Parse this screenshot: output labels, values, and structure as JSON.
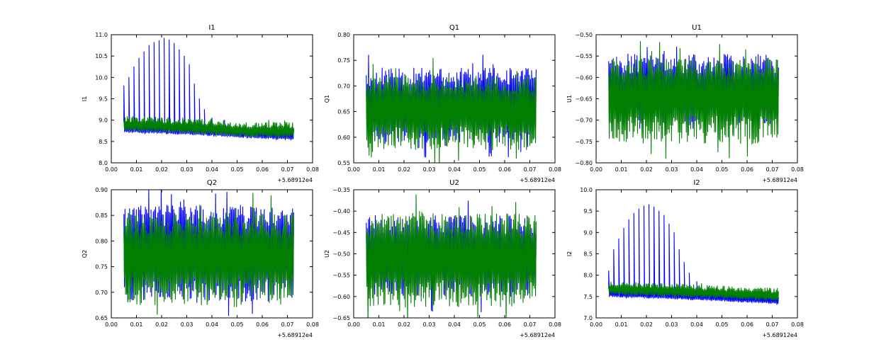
{
  "chart_data": [
    {
      "type": "line",
      "title": "I1",
      "xlabel": "",
      "ylabel": "I1",
      "xlim": [
        0.0,
        0.08
      ],
      "ylim": [
        8.0,
        11.0
      ],
      "x_offset_label": "+5.68912e4",
      "xticks": [
        "0.00",
        "0.01",
        "0.02",
        "0.03",
        "0.04",
        "0.05",
        "0.06",
        "0.07",
        "0.08"
      ],
      "yticks": [
        "8.0",
        "8.5",
        "9.0",
        "9.5",
        "10.0",
        "10.5",
        "11.0"
      ],
      "x_range": [
        0.005,
        0.0725
      ],
      "blue_series": {
        "color": "#0000ff",
        "base": [
          [
            0.005,
            8.78
          ],
          [
            0.03,
            8.73
          ],
          [
            0.05,
            8.66
          ],
          [
            0.0725,
            8.6
          ]
        ],
        "band_low": 0.07,
        "band_high": 0.2,
        "spikes": [
          [
            0.005,
            9.8
          ],
          [
            0.007,
            10.0
          ],
          [
            0.009,
            10.25
          ],
          [
            0.011,
            10.45
          ],
          [
            0.013,
            10.6
          ],
          [
            0.015,
            10.75
          ],
          [
            0.017,
            10.82
          ],
          [
            0.019,
            10.86
          ],
          [
            0.021,
            10.92
          ],
          [
            0.023,
            10.88
          ],
          [
            0.025,
            10.8
          ],
          [
            0.027,
            10.65
          ],
          [
            0.029,
            10.5
          ],
          [
            0.031,
            10.3
          ],
          [
            0.033,
            9.85
          ],
          [
            0.035,
            9.5
          ],
          [
            0.037,
            9.25
          ],
          [
            0.04,
            9.05
          ],
          [
            0.045,
            9.0
          ]
        ]
      },
      "green_series": {
        "color": "#007f00",
        "base": [
          [
            0.005,
            8.85
          ],
          [
            0.03,
            8.8
          ],
          [
            0.05,
            8.72
          ],
          [
            0.0725,
            8.7
          ]
        ],
        "band_low": 0.1,
        "band_high": 0.25
      }
    },
    {
      "type": "line",
      "title": "Q1",
      "xlabel": "",
      "ylabel": "Q1",
      "xlim": [
        0.0,
        0.08
      ],
      "ylim": [
        0.55,
        0.8
      ],
      "x_offset_label": "+5.68912e4",
      "xticks": [
        "0.00",
        "0.01",
        "0.02",
        "0.03",
        "0.04",
        "0.05",
        "0.06",
        "0.07",
        "0.08"
      ],
      "yticks": [
        "0.55",
        "0.60",
        "0.65",
        "0.70",
        "0.75",
        "0.80"
      ],
      "x_range": [
        0.005,
        0.0725
      ],
      "blue_series": {
        "color": "#0000ff",
        "base": [
          [
            0.005,
            0.665
          ],
          [
            0.0725,
            0.665
          ]
        ],
        "band_low": 0.075,
        "band_high": 0.07,
        "spikes": []
      },
      "green_series": {
        "color": "#007f00",
        "base": [
          [
            0.005,
            0.66
          ],
          [
            0.0725,
            0.66
          ]
        ],
        "band_low": 0.085,
        "band_high": 0.06
      }
    },
    {
      "type": "line",
      "title": "U1",
      "xlabel": "",
      "ylabel": "U1",
      "xlim": [
        0.0,
        0.08
      ],
      "ylim": [
        -0.8,
        -0.5
      ],
      "x_offset_label": "+5.68912e4",
      "xticks": [
        "0.00",
        "0.01",
        "0.02",
        "0.03",
        "0.04",
        "0.05",
        "0.06",
        "0.07",
        "0.08"
      ],
      "yticks": [
        "−0.80",
        "−0.75",
        "−0.70",
        "−0.65",
        "−0.60",
        "−0.55",
        "−0.50"
      ],
      "x_range": [
        0.005,
        0.0725
      ],
      "blue_series": {
        "color": "#0000ff",
        "base": [
          [
            0.005,
            -0.63
          ],
          [
            0.0725,
            -0.63
          ]
        ],
        "band_low": 0.08,
        "band_high": 0.085,
        "spikes": []
      },
      "green_series": {
        "color": "#007f00",
        "base": [
          [
            0.005,
            -0.635
          ],
          [
            0.0725,
            -0.635
          ]
        ],
        "band_low": 0.12,
        "band_high": 0.08
      }
    },
    {
      "type": "line",
      "title": "Q2",
      "xlabel": "",
      "ylabel": "Q2",
      "xlim": [
        0.0,
        0.08
      ],
      "ylim": [
        0.65,
        0.9
      ],
      "x_offset_label": "+5.68912e4",
      "xticks": [
        "0.00",
        "0.01",
        "0.02",
        "0.03",
        "0.04",
        "0.05",
        "0.06",
        "0.07",
        "0.08"
      ],
      "yticks": [
        "0.65",
        "0.70",
        "0.75",
        "0.80",
        "0.85",
        "0.90"
      ],
      "x_range": [
        0.005,
        0.0725
      ],
      "blue_series": {
        "color": "#0000ff",
        "base": [
          [
            0.005,
            0.78
          ],
          [
            0.0725,
            0.78
          ]
        ],
        "band_low": 0.1,
        "band_high": 0.09,
        "spikes": []
      },
      "green_series": {
        "color": "#007f00",
        "base": [
          [
            0.005,
            0.775
          ],
          [
            0.0725,
            0.775
          ]
        ],
        "band_low": 0.1,
        "band_high": 0.08
      }
    },
    {
      "type": "line",
      "title": "U2",
      "xlabel": "",
      "ylabel": "U2",
      "xlim": [
        0.0,
        0.08
      ],
      "ylim": [
        -0.65,
        -0.35
      ],
      "x_offset_label": "+5.68912e4",
      "xticks": [
        "0.00",
        "0.01",
        "0.02",
        "0.03",
        "0.04",
        "0.05",
        "0.06",
        "0.07",
        "0.08"
      ],
      "yticks": [
        "−0.65",
        "−0.60",
        "−0.55",
        "−0.50",
        "−0.45",
        "−0.40",
        "−0.35"
      ],
      "x_range": [
        0.005,
        0.0725
      ],
      "blue_series": {
        "color": "#0000ff",
        "base": [
          [
            0.005,
            -0.5
          ],
          [
            0.0725,
            -0.5
          ]
        ],
        "band_low": 0.1,
        "band_high": 0.09,
        "spikes": []
      },
      "green_series": {
        "color": "#007f00",
        "base": [
          [
            0.005,
            -0.505
          ],
          [
            0.0725,
            -0.505
          ]
        ],
        "band_low": 0.12,
        "band_high": 0.1
      }
    },
    {
      "type": "line",
      "title": "I2",
      "xlabel": "",
      "ylabel": "I2",
      "xlim": [
        0.0,
        0.08
      ],
      "ylim": [
        7.0,
        10.0
      ],
      "x_offset_label": "+5.68912e4",
      "xticks": [
        "0.00",
        "0.01",
        "0.02",
        "0.03",
        "0.04",
        "0.05",
        "0.06",
        "0.07",
        "0.08"
      ],
      "yticks": [
        "7.0",
        "7.5",
        "8.0",
        "8.5",
        "9.0",
        "9.5",
        "10.0"
      ],
      "x_range": [
        0.005,
        0.0725
      ],
      "blue_series": {
        "color": "#0000ff",
        "base": [
          [
            0.005,
            7.55
          ],
          [
            0.03,
            7.5
          ],
          [
            0.05,
            7.45
          ],
          [
            0.0725,
            7.38
          ]
        ],
        "band_low": 0.06,
        "band_high": 0.15,
        "spikes": [
          [
            0.005,
            8.1
          ],
          [
            0.007,
            8.6
          ],
          [
            0.009,
            8.85
          ],
          [
            0.011,
            9.1
          ],
          [
            0.013,
            9.3
          ],
          [
            0.015,
            9.45
          ],
          [
            0.017,
            9.55
          ],
          [
            0.019,
            9.62
          ],
          [
            0.021,
            9.65
          ],
          [
            0.023,
            9.6
          ],
          [
            0.025,
            9.5
          ],
          [
            0.027,
            9.4
          ],
          [
            0.029,
            9.2
          ],
          [
            0.031,
            9.0
          ],
          [
            0.033,
            8.6
          ],
          [
            0.035,
            8.3
          ],
          [
            0.037,
            8.05
          ],
          [
            0.04,
            7.85
          ],
          [
            0.045,
            7.75
          ]
        ]
      },
      "green_series": {
        "color": "#007f00",
        "base": [
          [
            0.005,
            7.65
          ],
          [
            0.03,
            7.6
          ],
          [
            0.05,
            7.55
          ],
          [
            0.0725,
            7.5
          ]
        ],
        "band_low": 0.1,
        "band_high": 0.2
      }
    }
  ]
}
